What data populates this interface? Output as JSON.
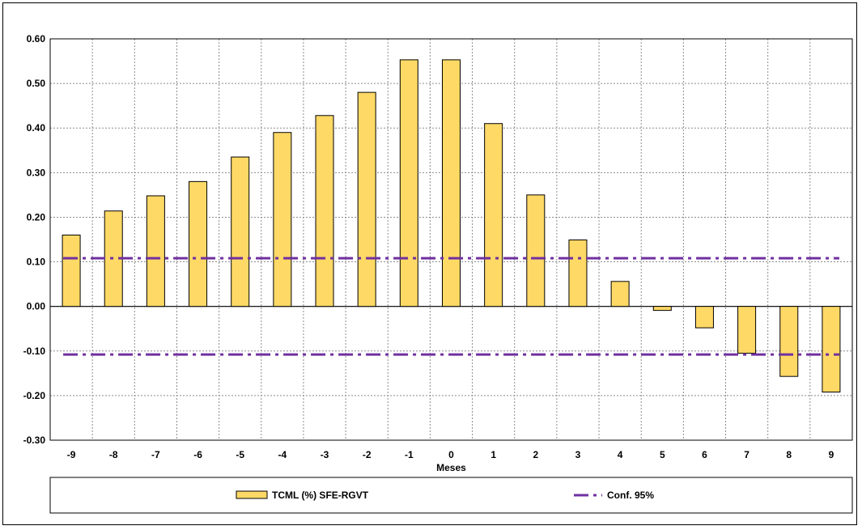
{
  "chart_data": {
    "type": "bar",
    "xlabel": "Meses",
    "ylabel": "",
    "ylim": [
      -0.3,
      0.6
    ],
    "yticks": [
      "0.60",
      "0.50",
      "0.40",
      "0.30",
      "0.20",
      "0.10",
      "0.00",
      "-0.10",
      "-0.20",
      "-0.30"
    ],
    "ytick_values": [
      0.6,
      0.5,
      0.4,
      0.3,
      0.2,
      0.1,
      0.0,
      -0.1,
      -0.2,
      -0.3
    ],
    "categories": [
      "-9",
      "-8",
      "-7",
      "-6",
      "-5",
      "-4",
      "-3",
      "-2",
      "-1",
      "0",
      "1",
      "2",
      "3",
      "4",
      "5",
      "6",
      "7",
      "8",
      "9"
    ],
    "grid": true,
    "legend_placement": "bottom",
    "series": [
      {
        "name": "TCML (%) SFE-RGVT",
        "type": "bar",
        "color": "#FFD966",
        "values": [
          0.16,
          0.214,
          0.248,
          0.28,
          0.335,
          0.39,
          0.428,
          0.48,
          0.553,
          0.553,
          0.41,
          0.25,
          0.149,
          0.056,
          -0.009,
          -0.048,
          -0.105,
          -0.157,
          -0.192
        ]
      },
      {
        "name": "Conf. 95%",
        "type": "line",
        "color": "#7030A0",
        "upper": 0.108,
        "lower": -0.108
      }
    ]
  }
}
